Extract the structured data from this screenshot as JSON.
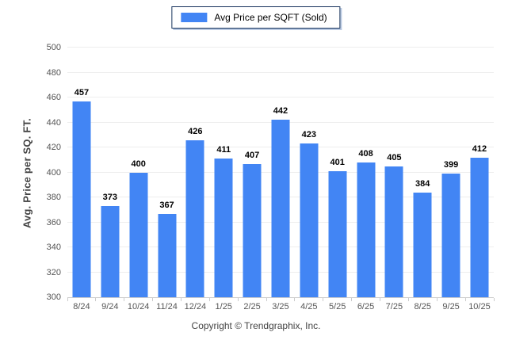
{
  "chart_data": {
    "type": "bar",
    "title": "",
    "xlabel": "",
    "ylabel": "Avg. Price per SQ. FT.",
    "categories": [
      "8/24",
      "9/24",
      "10/24",
      "11/24",
      "12/24",
      "1/25",
      "2/25",
      "3/25",
      "4/25",
      "5/25",
      "6/25",
      "7/25",
      "8/25",
      "9/25",
      "10/25"
    ],
    "series": [
      {
        "name": "Avg Price per SQFT (Sold)",
        "values": [
          457,
          373,
          400,
          367,
          426,
          411,
          407,
          442,
          423,
          401,
          408,
          405,
          384,
          399,
          412
        ]
      }
    ],
    "ylim": [
      300,
      500
    ],
    "ytick_step": 20,
    "grid": true,
    "legend_position": "top-center",
    "bar_color": "#4285f4"
  },
  "footer": {
    "copyright": "Copyright © Trendgraphix, Inc."
  },
  "colors": {
    "bar": "#4285f4",
    "gridline": "#eeeeee",
    "axis_line": "#cccccc",
    "tick_text": "#555555",
    "value_label": "#000000",
    "legend_border": "#16325c",
    "legend_shadow": "#b9c9e2"
  }
}
